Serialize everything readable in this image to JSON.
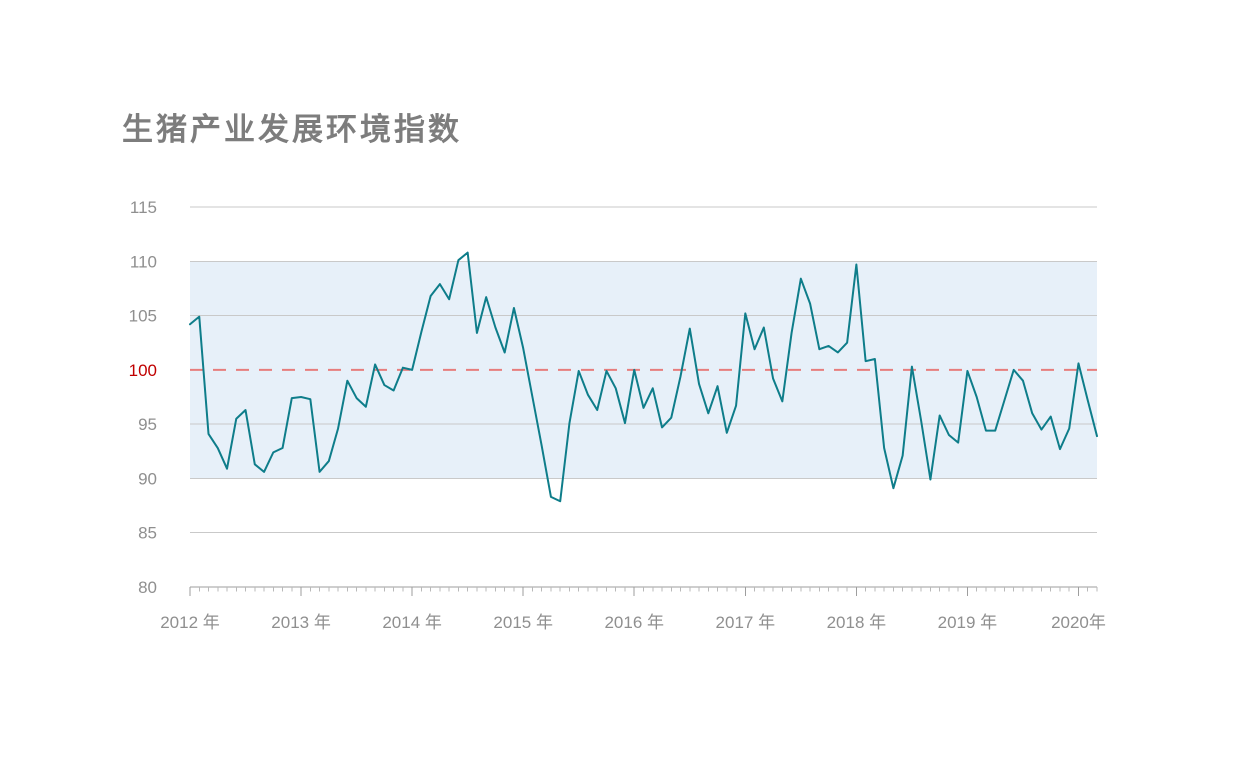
{
  "title": {
    "text": "生猪产业发展环境指数",
    "color": "#7d7d7d"
  },
  "chart_data": {
    "type": "line",
    "title": "生猪产业发展环境指数",
    "x_tick_labels": [
      "2012 年",
      "2013 年",
      "2014 年",
      "2015 年",
      "2016 年",
      "2017 年",
      "2018 年",
      "2019 年",
      "2020年"
    ],
    "months_per_major_tick": 12,
    "x_start": "2012-01",
    "x_end": "2020-03",
    "frequency": "monthly",
    "y_ticks": [
      80,
      85,
      90,
      95,
      100,
      105,
      110,
      115
    ],
    "ylim": [
      80,
      115
    ],
    "grid_values": [
      85,
      90,
      95,
      105,
      110,
      115
    ],
    "grid_on": true,
    "legend_position": "none",
    "reference_line": {
      "value": 100,
      "style": "dashed",
      "color": "#e77d7d",
      "label": "100",
      "label_color": "#c00000"
    },
    "band": {
      "from": 90,
      "to": 110,
      "color": "#e7f0f9"
    },
    "series": [
      {
        "name": "生猪产业发展环境指数",
        "color": "#0e7d8a",
        "values": [
          104.2,
          104.9,
          94.1,
          92.8,
          90.9,
          95.5,
          96.3,
          91.3,
          90.6,
          92.4,
          92.8,
          97.4,
          97.5,
          97.3,
          90.6,
          91.6,
          94.6,
          99.0,
          97.4,
          96.6,
          100.5,
          98.6,
          98.1,
          100.2,
          100.0,
          103.5,
          106.8,
          107.9,
          106.5,
          110.1,
          110.8,
          103.4,
          106.7,
          103.9,
          101.6,
          105.7,
          102.0,
          97.5,
          93.0,
          88.3,
          87.9,
          95.1,
          99.9,
          97.7,
          96.3,
          99.9,
          98.3,
          95.1,
          100.0,
          96.5,
          98.3,
          94.7,
          95.6,
          99.4,
          103.8,
          98.7,
          96.0,
          98.5,
          94.2,
          96.7,
          105.2,
          101.9,
          103.9,
          99.2,
          97.1,
          103.4,
          108.4,
          106.1,
          101.9,
          102.2,
          101.6,
          102.5,
          109.7,
          100.8,
          101.0,
          92.8,
          89.1,
          92.1,
          100.3,
          95.3,
          89.9,
          95.8,
          94.0,
          93.3,
          99.9,
          97.5,
          94.4,
          94.4,
          97.2,
          100.0,
          99.0,
          96.0,
          94.5,
          95.7,
          92.7,
          94.6,
          100.6,
          97.2,
          93.9
        ]
      }
    ],
    "colors": {
      "grid": "#c9c9c9",
      "axis": "#9e9e9e",
      "minor_tick": "#b9b9b9",
      "tick_label": "#8f8f8f"
    }
  },
  "layout_note": "single line chart, shaded band 90-110, red dashed baseline at 100"
}
